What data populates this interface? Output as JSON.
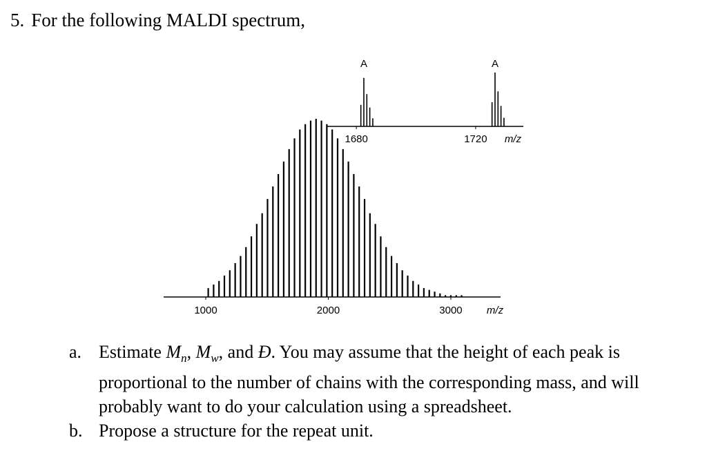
{
  "question": {
    "number": "5.",
    "text": "For the following MALDI spectrum,"
  },
  "items": [
    {
      "label": "a.",
      "parts": [
        "Estimate ",
        "M",
        "n",
        ", ",
        "M",
        "w",
        ", and ",
        "Đ",
        ". You may assume that the height of each peak is proportional to the number of chains with the corresponding mass, and will probably want to do your calculation using a spreadsheet."
      ]
    },
    {
      "label": "b.",
      "parts": [
        "Propose a structure for the repeat unit."
      ]
    }
  ],
  "chart_data": [
    {
      "type": "stem",
      "x_label": "m/z",
      "x": [
        1020,
        1064,
        1108,
        1152,
        1196,
        1240,
        1284,
        1328,
        1372,
        1416,
        1460,
        1504,
        1548,
        1592,
        1636,
        1680,
        1724,
        1768,
        1812,
        1856,
        1900,
        1944,
        1988,
        2032,
        2076,
        2120,
        2164,
        2208,
        2252,
        2296,
        2340,
        2384,
        2428,
        2472,
        2516,
        2560,
        2604,
        2648,
        2692,
        2736,
        2780,
        2824,
        2868,
        2912,
        2956,
        3000,
        3044,
        3088
      ],
      "values": [
        5,
        7,
        9,
        12,
        15,
        19,
        23,
        28,
        34,
        41,
        47,
        55,
        62,
        69,
        76,
        83,
        89,
        94,
        97,
        99,
        100,
        99,
        97,
        94,
        89,
        83,
        76,
        69,
        62,
        55,
        47,
        41,
        34,
        28,
        23,
        19,
        15,
        12,
        9,
        7,
        5,
        4,
        3,
        2,
        1,
        1,
        1,
        1
      ],
      "color": "#000000",
      "xlim": [
        656,
        3406
      ],
      "xticks": [
        1000,
        2000,
        3000
      ],
      "ylim": [
        0,
        100
      ]
    },
    {
      "type": "stem",
      "x_label": "m/z",
      "x": [
        1681.5,
        1682.5,
        1683.5,
        1684.5,
        1685.5,
        1725.5,
        1726.5,
        1727.5,
        1728.5,
        1729.5
      ],
      "values": [
        40,
        90,
        60,
        35,
        15,
        45,
        100,
        65,
        38,
        16
      ],
      "color": "#000000",
      "xlim": [
        1670,
        1736
      ],
      "xticks": [
        1680,
        1720
      ],
      "ylim": [
        0,
        100
      ],
      "annotations": [
        {
          "x": 1682.5,
          "text": "A"
        },
        {
          "x": 1726.5,
          "text": "A"
        }
      ]
    }
  ]
}
